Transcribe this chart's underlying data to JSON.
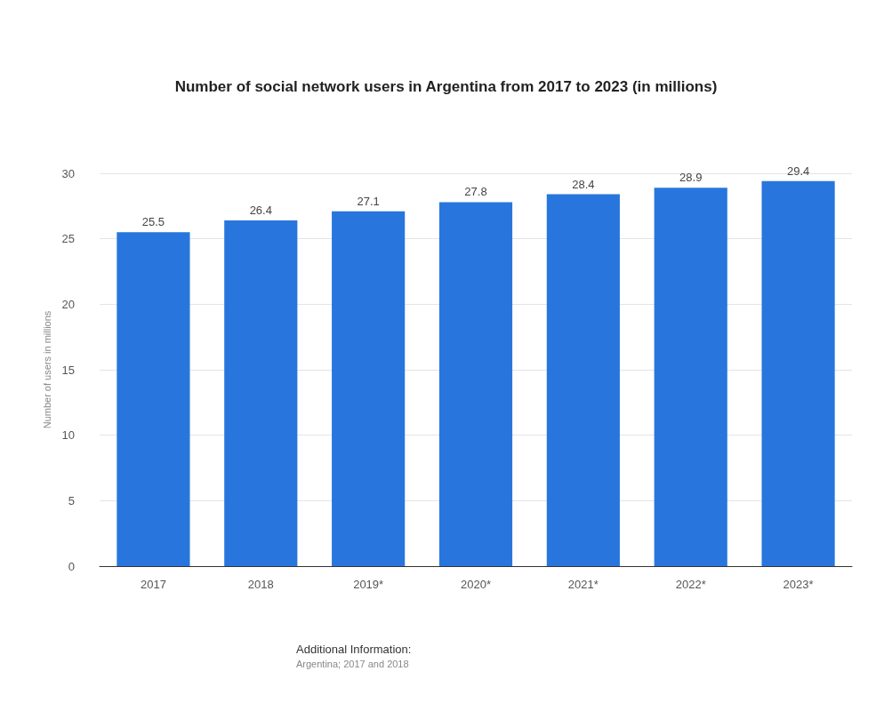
{
  "chart_data": {
    "type": "bar",
    "title": "Number of social network users in Argentina from 2017 to 2023 (in millions)",
    "ylabel": "Number of users in millions",
    "categories": [
      "2017",
      "2018",
      "2019*",
      "2020*",
      "2021*",
      "2022*",
      "2023*"
    ],
    "values": [
      25.5,
      26.4,
      27.1,
      27.8,
      28.4,
      28.9,
      29.4
    ],
    "color": "#2876dd",
    "ylim": [
      0,
      30
    ],
    "yticks": [
      0,
      5,
      10,
      15,
      20,
      25,
      30
    ],
    "grid": "y",
    "data_labels": true,
    "annotations": [
      "Additional Information:",
      "Argentina; 2017 and 2018"
    ]
  }
}
